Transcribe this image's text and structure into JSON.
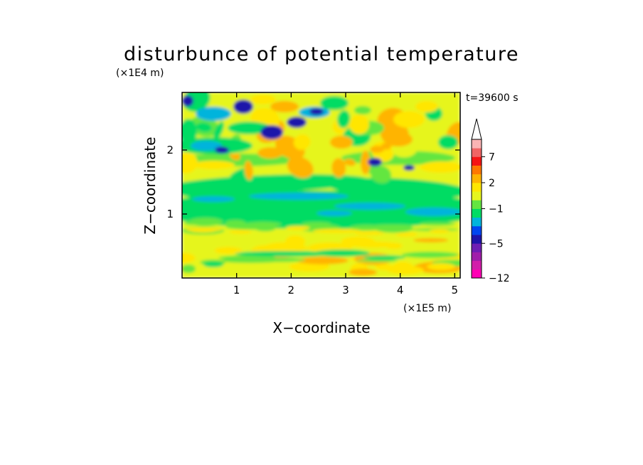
{
  "chart_data": {
    "type": "heatmap",
    "title": "disturbunce of potential temperature",
    "time_label": "t=39600 s",
    "xlabel": "X−coordinate",
    "ylabel": "Z−coordinate",
    "x_unit": "(×1E5 m)",
    "y_unit": "(×1E4 m)",
    "xlim": [
      0,
      5.1
    ],
    "ylim": [
      0,
      2.9
    ],
    "x_ticks": [
      "1",
      "2",
      "3",
      "4",
      "5"
    ],
    "y_ticks": [
      "1",
      "2"
    ],
    "colorbar": {
      "labels": [
        "−12",
        "−5",
        "−1",
        "2",
        "7"
      ],
      "levels": [
        -12,
        -10,
        -8,
        -6,
        -5,
        -4,
        -3,
        -2,
        -1,
        0,
        1,
        2,
        3,
        5,
        7,
        9,
        11
      ],
      "colors": [
        "#ff00b4",
        "#d21eaa",
        "#a01eaa",
        "#6e1eb4",
        "#1e14aa",
        "#0046f0",
        "#00b4dc",
        "#00dc64",
        "#64e641",
        "#e6f51e",
        "#ffe600",
        "#ffb400",
        "#ff7800",
        "#f51414",
        "#f06464",
        "#fab4b4"
      ],
      "extend_max": true
    }
  }
}
